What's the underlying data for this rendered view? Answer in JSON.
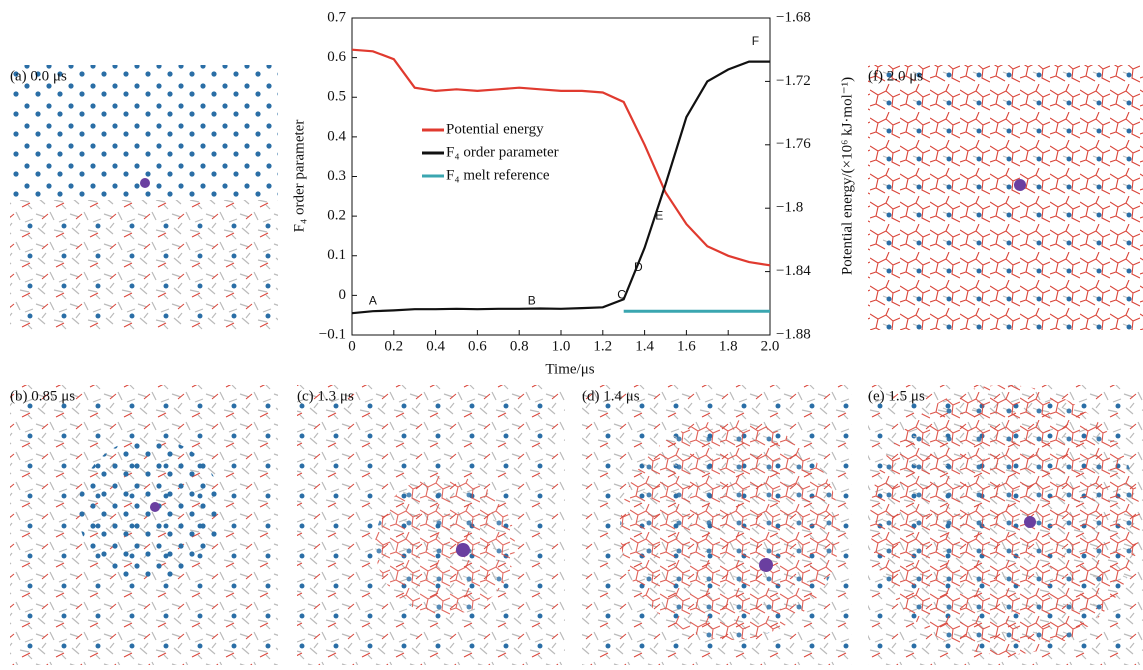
{
  "chart_data": {
    "type": "line",
    "x_label": "Time/μs",
    "y_label": "F₄ order parameter",
    "y2_label": "Potential energy/(×10⁶ kJ·mol⁻¹)",
    "x": [
      0,
      0.1,
      0.2,
      0.3,
      0.4,
      0.5,
      0.6,
      0.7,
      0.8,
      0.9,
      1.0,
      1.1,
      1.2,
      1.3,
      1.4,
      1.5,
      1.6,
      1.7,
      1.8,
      1.9,
      2.0
    ],
    "series": [
      {
        "name": "Potential energy",
        "color": "#e03a2f",
        "axis": "y2",
        "values": [
          -1.7,
          -1.701,
          -1.706,
          -1.724,
          -1.726,
          -1.725,
          -1.726,
          -1.725,
          -1.724,
          -1.725,
          -1.726,
          -1.726,
          -1.727,
          -1.733,
          -1.76,
          -1.79,
          -1.81,
          -1.824,
          -1.83,
          -1.834,
          -1.836
        ]
      },
      {
        "name": "F₄ order parameter",
        "color": "#111111",
        "values": [
          -0.045,
          -0.04,
          -0.038,
          -0.035,
          -0.035,
          -0.034,
          -0.035,
          -0.034,
          -0.034,
          -0.033,
          -0.034,
          -0.032,
          -0.03,
          -0.01,
          0.12,
          0.28,
          0.45,
          0.54,
          0.57,
          0.59,
          0.59
        ]
      },
      {
        "name": "F₄ melt reference",
        "color": "#3aa6b0",
        "values": [
          null,
          null,
          null,
          null,
          null,
          null,
          null,
          null,
          null,
          null,
          null,
          null,
          null,
          -0.04,
          -0.04,
          -0.04,
          -0.04,
          -0.04,
          -0.04,
          -0.04,
          -0.04
        ]
      }
    ],
    "annotations": [
      {
        "text": "A",
        "x": 0.1,
        "y": -0.015
      },
      {
        "text": "B",
        "x": 0.86,
        "y": -0.015
      },
      {
        "text": "C",
        "x": 1.29,
        "y": 0.0
      },
      {
        "text": "D",
        "x": 1.37,
        "y": 0.07
      },
      {
        "text": "E",
        "x": 1.47,
        "y": 0.2
      },
      {
        "text": "F",
        "x": 1.93,
        "y": 0.64
      }
    ],
    "xlim": [
      0,
      2
    ],
    "xticks": [
      0,
      0.2,
      0.4,
      0.6,
      0.8,
      {
        "value": 1,
        "label": "1.0"
      },
      1.2,
      1.4,
      1.6,
      1.8,
      {
        "value": 2,
        "label": "2.0"
      }
    ],
    "ylim": [
      -0.1,
      0.7
    ],
    "yticks": [
      {
        "value": -0.1,
        "label": "−0.1"
      },
      0,
      0.1,
      0.2,
      0.3,
      0.4,
      0.5,
      0.6,
      0.7
    ],
    "y2lim": [
      -1.88,
      -1.68
    ],
    "y2ticks": [
      {
        "value": -1.88,
        "label": "−1.88"
      },
      {
        "value": -1.84,
        "label": "−1.84"
      },
      {
        "value": -1.8,
        "label": "−1.8"
      },
      {
        "value": -1.76,
        "label": "−1.76"
      },
      {
        "value": -1.72,
        "label": "−1.72"
      },
      {
        "value": -1.68,
        "label": "−1.68"
      }
    ],
    "legend": "center"
  },
  "panels": [
    {
      "label": "(a) 0.0 μs"
    },
    {
      "label": "(f) 2.0 μs"
    },
    {
      "label": "(b) 0.85 μs"
    },
    {
      "label": "(c) 1.3 μs"
    },
    {
      "label": "(d) 1.4 μs"
    },
    {
      "label": "(e) 1.5 μs"
    }
  ]
}
